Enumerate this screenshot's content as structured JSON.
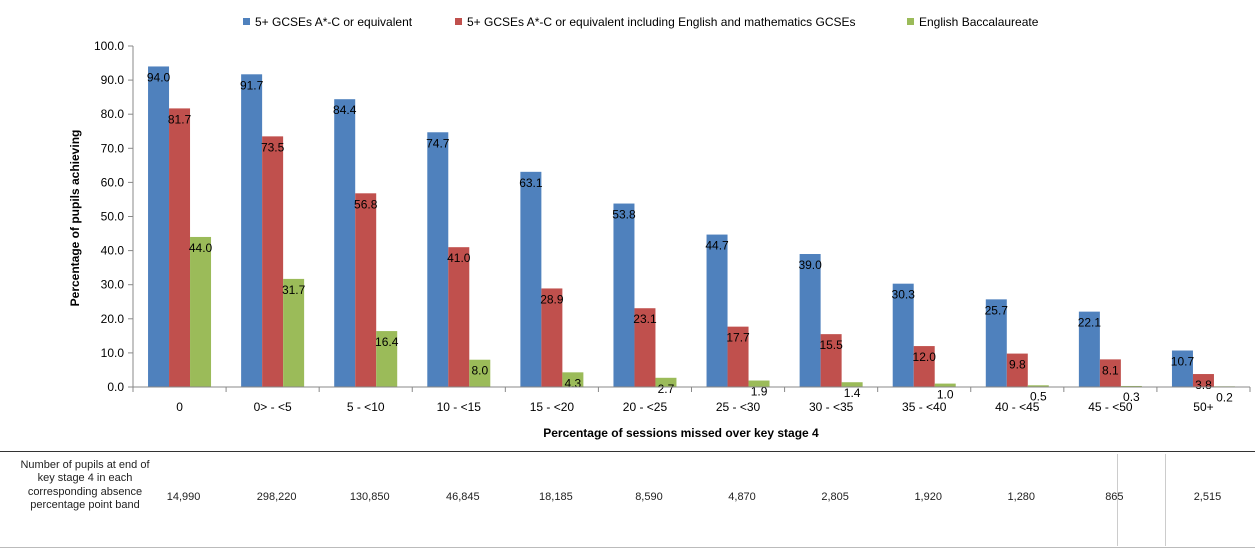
{
  "chart_data": {
    "type": "bar",
    "categories": [
      "0",
      "0> - <5",
      "5 - <10",
      "10 - <15",
      "15 - <20",
      "20 - <25",
      "25 - <30",
      "30 - <35",
      "35 - <40",
      "40 - <45",
      "45 - <50",
      "50+"
    ],
    "series": [
      {
        "name": "5+ GCSEs A*-C or equivalent",
        "color": "#4F81BD",
        "values": [
          94.0,
          91.7,
          84.4,
          74.7,
          63.1,
          53.8,
          44.7,
          39.0,
          30.3,
          25.7,
          22.1,
          10.7
        ]
      },
      {
        "name": "5+ GCSEs A*-C or equivalent including English and mathematics GCSEs",
        "color": "#C0504D",
        "values": [
          81.7,
          73.5,
          56.8,
          41.0,
          28.9,
          23.1,
          17.7,
          15.5,
          12.0,
          9.8,
          8.1,
          3.8
        ]
      },
      {
        "name": "English Baccalaureate",
        "color": "#9BBB59",
        "values": [
          44.0,
          31.7,
          16.4,
          8.0,
          4.3,
          2.7,
          1.9,
          1.4,
          1.0,
          0.5,
          0.3,
          0.2
        ]
      }
    ],
    "xlabel": "Percentage of sessions missed over key stage 4",
    "ylabel": "Percentage of pupils achieving",
    "ylim": [
      0,
      100
    ],
    "yticks": [
      "0.0",
      "10.0",
      "20.0",
      "30.0",
      "40.0",
      "50.0",
      "60.0",
      "70.0",
      "80.0",
      "90.0",
      "100.0"
    ],
    "legend_position": "top",
    "grid": false
  },
  "table": {
    "row_header": "Number of pupils at end of key stage 4 in each corresponding absence percentage point band",
    "values": [
      "14,990",
      "298,220",
      "130,850",
      "46,845",
      "18,185",
      "8,590",
      "4,870",
      "2,805",
      "1,920",
      "1,280",
      "865",
      "2,515"
    ]
  }
}
